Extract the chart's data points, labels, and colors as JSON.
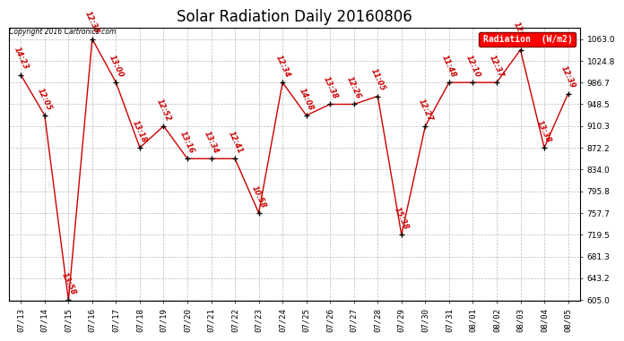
{
  "title": "Solar Radiation Daily 20160806",
  "copyright_text": "Copyright 2016 Cartronics.com",
  "legend_label": "Radiation  (W/m2)",
  "x_labels": [
    "07/13",
    "07/14",
    "07/15",
    "07/16",
    "07/17",
    "07/18",
    "07/19",
    "07/20",
    "07/21",
    "07/22",
    "07/23",
    "07/24",
    "07/25",
    "07/26",
    "07/27",
    "07/28",
    "07/29",
    "07/30",
    "07/31",
    "08/01",
    "08/02",
    "08/03",
    "08/04",
    "08/05"
  ],
  "y_values": [
    1000.0,
    929.0,
    605.0,
    1063.0,
    986.7,
    872.2,
    910.3,
    853.0,
    853.0,
    853.0,
    757.7,
    986.7,
    929.0,
    948.5,
    948.5,
    962.6,
    719.5,
    910.3,
    986.7,
    986.7,
    986.7,
    1044.0,
    872.2,
    967.0
  ],
  "annotations": [
    "14:23",
    "12:05",
    "13:58",
    "12:38",
    "13:00",
    "13:18",
    "12:52",
    "13:16",
    "13:34",
    "12:41",
    "10:58",
    "12:34",
    "14:08",
    "13:38",
    "12:26",
    "11:05",
    "15:38",
    "12:27",
    "11:48",
    "12:10",
    "12:37",
    "12:57",
    "13:38",
    "12:39"
  ],
  "line_color": "#cc0000",
  "marker_color": "#000000",
  "background_color": "#ffffff",
  "grid_color": "#bbbbbb",
  "ylim_min": 605.0,
  "ylim_max": 1063.0,
  "yticks": [
    605.0,
    643.2,
    681.3,
    719.5,
    757.7,
    795.8,
    834.0,
    872.2,
    910.3,
    948.5,
    986.7,
    1024.8,
    1063.0
  ],
  "title_fontsize": 12,
  "annotation_color": "#cc0000",
  "annotation_fontsize": 6.0,
  "ann_rotation": -65
}
